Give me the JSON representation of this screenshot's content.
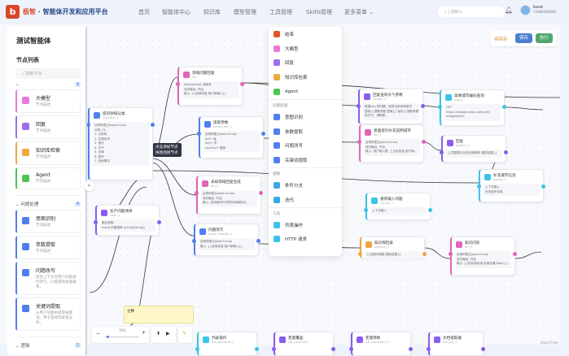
{
  "header": {
    "brand_prefix": "极智",
    "brand_suffix": " · 智能体开发和应用平台",
    "nav": [
      "首页",
      "智能体中心",
      "知识库",
      "模型管理",
      "工具管理",
      "Skills管理",
      "更多菜单 ⌄"
    ],
    "search_placeholder": "请输入",
    "user_name": "base",
    "user_phone": "15888888888"
  },
  "sidebar": {
    "agent_title": "测试智能体",
    "list_title": "节点列表",
    "search_placeholder": "搜索节点",
    "groups": [
      {
        "name": "",
        "count": "4",
        "items": [
          {
            "label": "大模型",
            "desc": "节点描述",
            "color": "#e879d9"
          },
          {
            "label": "回复",
            "desc": "节点描述",
            "color": "#a06cf0"
          },
          {
            "label": "知识库检索",
            "desc": "节点描述",
            "color": "#f0a640"
          },
          {
            "label": "Agent",
            "desc": "节点描述",
            "color": "#4cc552"
          }
        ]
      },
      {
        "name": "问题处理",
        "count": "4",
        "items": [
          {
            "label": "意图识别",
            "desc": "节点描述",
            "color": "#4f7ff0"
          },
          {
            "label": "参数提取",
            "desc": "节点描述",
            "color": "#4f7ff0"
          },
          {
            "label": "问题改写",
            "desc": "结合上下文对用户问题进行改写，以提高检索准确率。",
            "color": "#4f7ff0"
          },
          {
            "label": "关键词提取",
            "desc": "从用户问题中提取关键词，用于后续检索或分析。",
            "color": "#4f7ff0"
          }
        ]
      },
      {
        "name": "逻辑",
        "count": "2",
        "items": []
      }
    ]
  },
  "menu": {
    "items": [
      {
        "label": "结束",
        "color": "#e5532d"
      },
      {
        "label": "大模型",
        "color": "#e879d9"
      },
      {
        "label": "回复",
        "color": "#a06cf0"
      },
      {
        "label": "知识库检索",
        "color": "#f0a640"
      },
      {
        "label": "Agent",
        "color": "#4cc552"
      }
    ],
    "sections": [
      {
        "title": "问题处理",
        "items": [
          {
            "label": "意图识别",
            "color": "#4f7ff0"
          },
          {
            "label": "参数提取",
            "color": "#4f7ff0"
          },
          {
            "label": "问题改写",
            "color": "#4f7ff0"
          },
          {
            "label": "关键词提取",
            "color": "#4f7ff0"
          }
        ]
      },
      {
        "title": "逻辑",
        "items": [
          {
            "label": "条件分支",
            "color": "#3aa7e8"
          },
          {
            "label": "迭代",
            "color": "#3aa7e8"
          }
        ]
      },
      {
        "title": "工具",
        "items": [
          {
            "label": "列表操作",
            "color": "#3cc3e8"
          },
          {
            "label": "HTTP 请求",
            "color": "#3cc3e8"
          }
        ]
      }
    ]
  },
  "toolbar": {
    "status": "待保存",
    "save": "保存",
    "run": "执行",
    "colors": {
      "save": "#4a7fd0",
      "run": "#4ea66a",
      "status": "#d98a2b"
    }
  },
  "tooltip": [
    "点击添加节点",
    "拖拽连接节点"
  ],
  "note": "注释",
  "zoom": {
    "level": "76%",
    "minus": "−",
    "plus": "+"
  },
  "watermark": "React Flow",
  "nodes": [
    {
      "title": "提问领域分类",
      "id": "classifier_1",
      "color": "#4f7ff0",
      "lines": [
        "百炼阿里云qwen3-max",
        "分类 (7):",
        "1. 计算机",
        "2. 生物化学",
        "3. 医疗",
        "4. 天气",
        "5. 法律",
        "6. 数学",
        "7. 其他情况"
      ]
    },
    {
      "title": "领域问题回复",
      "id": "llm",
      "color": "#e064b8",
      "lines": [
        "Deepseek云-深度求",
        "流式输出: 开启",
        "输入: {{全局变量.用户新输入}}"
      ]
    },
    {
      "title": "提取参数",
      "id": "param_ext_1",
      "color": "#4f7ff0",
      "lines": [
        "百炼阿里云qwen3-max",
        "pro*: 省",
        "city*: 市",
        "country*: 国家"
      ]
    },
    {
      "title": "未知领域回复生成",
      "id": "llm_2",
      "color": "#e064b8",
      "lines": [
        "百炼阿里云qwen3-max",
        "流式输出: 开启",
        "输入: 告知使用户的提问领域的创..."
      ]
    },
    {
      "title": "生产问题清单",
      "id": "code_1",
      "color": "#8a5cf0",
      "lines": [
        "输出参数:",
        "result  问题清单 (Array[String])"
      ]
    },
    {
      "title": "问题改写",
      "id": "query_rewriter_1",
      "color": "#4f7ff0",
      "lines": [
        "百炼阿里云qwen3-max",
        "输入: {{全局变量.用户新输入}}"
      ]
    },
    {
      "title": "回复查询天气参数",
      "id": "answer_3",
      "color": "#8a5cf0",
      "lines": [
        "根据city 的问题，获得当前查询城市",
        "国家{{提取参数.国家}} 省份{{提取参数.省份}}",
        "的天气，请稍候。"
      ]
    },
    {
      "title": "高德城市编码查询",
      "id": "http_1",
      "color": "#3cc3e8",
      "lines": [
        "GET",
        "https://restapi.amap.com/v3/c",
        "onfig/district"
      ]
    },
    {
      "title": "意图提示补充说明城市",
      "id": "llm_1",
      "color": "#e064b8",
      "lines": [
        "百炼阿里云qwen3-max",
        "流式输出: 开启",
        "输入: 用户输入是: 上文用变量,用户新..."
      ]
    },
    {
      "title": "回复",
      "id": "answer_4",
      "color": "#8a5cf0",
      "lines": [
        "{{意图提示补充说明城市.模型回复}}"
      ]
    },
    {
      "title": "补充城市信息",
      "id": "human_2",
      "color": "#3cc3e8",
      "lines": [
        "上下文输入",
        "补充城市信息"
      ]
    },
    {
      "title": "重新输入问题",
      "id": "human_1",
      "color": "#3cc3e8",
      "lines": [
        "上下文输入"
      ]
    },
    {
      "title": "知识库检索",
      "id": "retrieval_1",
      "color": "#f0a640",
      "lines": [
        "{{关键词提取.提取结果}}"
      ]
    },
    {
      "title": "知识问答",
      "id": "llm_3",
      "color": "#e064b8",
      "lines": [
        "百炼阿里云qwen3-max",
        "流式输出: 开启",
        "输入: {{知识库检索.检索结果(Text)}}..."
      ]
    },
    {
      "title": "列表操作",
      "id": "list_operation_2",
      "color": "#3cc3e8",
      "lines": []
    },
    {
      "title": "变量覆盖",
      "id": "var_override_1",
      "color": "#8a5cf0",
      "lines": []
    },
    {
      "title": "变量转换",
      "id": "var_transform_1",
      "color": "#8a5cf0",
      "lines": []
    },
    {
      "title": "文档提取器",
      "id": "doc_ext_1",
      "color": "#8a5cf0",
      "lines": []
    }
  ]
}
